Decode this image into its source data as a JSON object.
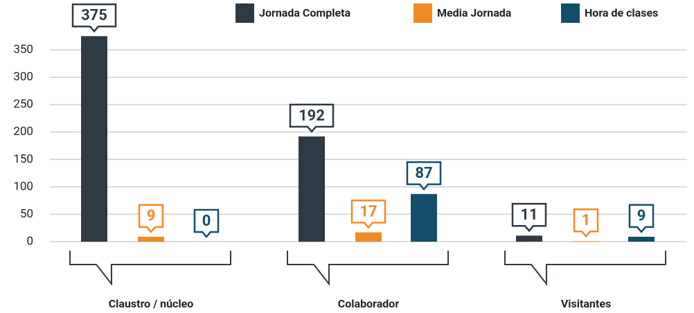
{
  "chart_data": {
    "type": "bar",
    "categories": [
      "Claustro / núcleo",
      "Colaborador",
      "Visitantes"
    ],
    "series": [
      {
        "name": "Jornada Completa",
        "color": "#2e3a44",
        "values": [
          375,
          192,
          11
        ]
      },
      {
        "name": "Media Jornada",
        "color": "#f28a24",
        "values": [
          9,
          17,
          1
        ]
      },
      {
        "name": "Hora de clases",
        "color": "#124e6b",
        "values": [
          0,
          87,
          9
        ]
      }
    ],
    "ylim": [
      0,
      350
    ],
    "yticks": [
      0,
      50,
      100,
      150,
      200,
      250,
      300,
      350
    ],
    "grid": true,
    "legend": "top"
  }
}
